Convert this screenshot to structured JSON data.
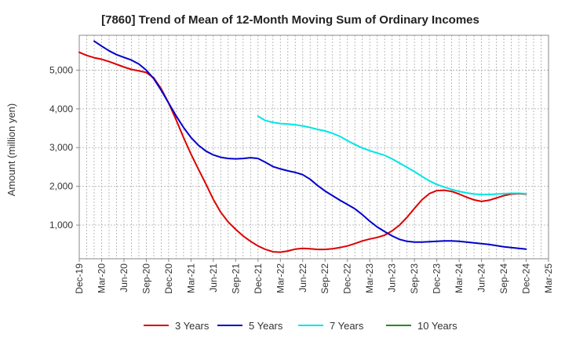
{
  "chart_data": {
    "type": "line",
    "title": "[7860]  Trend of Mean of 12-Month Moving Sum of Ordinary Incomes",
    "xlabel": "",
    "ylabel": "Amount (million yen)",
    "ylim": [
      130,
      5900
    ],
    "yticks": [
      1000,
      2000,
      3000,
      4000,
      5000
    ],
    "ytick_labels": [
      "1,000",
      "2,000",
      "3,000",
      "4,000",
      "5,000"
    ],
    "grid": true,
    "legend_position": "bottom",
    "x_tick_labels": [
      "Dec-19",
      "Mar-20",
      "Jun-20",
      "Sep-20",
      "Dec-20",
      "Mar-21",
      "Jun-21",
      "Sep-21",
      "Dec-21",
      "Mar-22",
      "Jun-22",
      "Sep-22",
      "Dec-22",
      "Mar-23",
      "Jun-23",
      "Sep-23",
      "Dec-23",
      "Mar-24",
      "Jun-24",
      "Sep-24",
      "Dec-24",
      "Mar-25"
    ],
    "x_count": 64,
    "series": [
      {
        "name": "3 Years",
        "color": "#dd0000",
        "x": [
          0,
          1,
          2,
          3,
          4,
          5,
          6,
          7,
          8,
          9,
          10,
          11,
          12,
          13,
          14,
          15,
          16,
          17,
          18,
          19,
          20,
          21,
          22,
          23,
          24,
          25,
          26,
          27,
          28,
          29,
          30,
          31,
          32,
          33,
          34,
          35,
          36,
          37,
          38,
          39,
          40,
          41,
          42,
          43,
          44,
          45,
          46,
          47,
          48,
          49,
          50,
          51,
          52,
          53,
          54,
          55,
          56,
          57,
          58,
          59,
          60
        ],
        "values": [
          5460,
          5380,
          5320,
          5280,
          5220,
          5150,
          5080,
          5020,
          4980,
          4940,
          4800,
          4520,
          4150,
          3720,
          3260,
          2830,
          2440,
          2060,
          1660,
          1330,
          1080,
          890,
          720,
          580,
          460,
          370,
          310,
          300,
          330,
          380,
          400,
          390,
          370,
          370,
          390,
          420,
          460,
          520,
          590,
          640,
          680,
          740,
          850,
          1000,
          1200,
          1430,
          1650,
          1810,
          1890,
          1900,
          1870,
          1800,
          1720,
          1650,
          1610,
          1640,
          1700,
          1760,
          1800,
          1810,
          1800
        ]
      },
      {
        "name": "5 Years",
        "color": "#0000cc",
        "x": [
          2,
          3,
          4,
          5,
          6,
          7,
          8,
          9,
          10,
          11,
          12,
          13,
          14,
          15,
          16,
          17,
          18,
          19,
          20,
          21,
          22,
          23,
          24,
          25,
          26,
          27,
          28,
          29,
          30,
          31,
          32,
          33,
          34,
          35,
          36,
          37,
          38,
          39,
          40,
          41,
          42,
          43,
          44,
          45,
          46,
          47,
          48,
          49,
          50,
          51,
          52,
          53,
          54,
          55,
          56,
          57,
          58,
          59,
          60
        ],
        "values": [
          5750,
          5620,
          5500,
          5400,
          5330,
          5260,
          5160,
          5000,
          4780,
          4480,
          4150,
          3820,
          3520,
          3260,
          3060,
          2910,
          2810,
          2750,
          2720,
          2710,
          2720,
          2740,
          2720,
          2620,
          2510,
          2450,
          2400,
          2360,
          2300,
          2180,
          2020,
          1880,
          1760,
          1640,
          1530,
          1420,
          1270,
          1100,
          950,
          830,
          720,
          630,
          580,
          560,
          560,
          570,
          580,
          590,
          590,
          580,
          560,
          540,
          520,
          500,
          470,
          440,
          420,
          400,
          380
        ]
      },
      {
        "name": "7 Years",
        "color": "#00e5e5",
        "x": [
          24,
          25,
          26,
          27,
          28,
          29,
          30,
          31,
          32,
          33,
          34,
          35,
          36,
          37,
          38,
          39,
          40,
          41,
          42,
          43,
          44,
          45,
          46,
          47,
          48,
          49,
          50,
          51,
          52,
          53,
          54,
          55,
          56,
          57,
          58,
          59,
          60
        ],
        "values": [
          3810,
          3700,
          3650,
          3620,
          3610,
          3590,
          3560,
          3520,
          3470,
          3430,
          3370,
          3290,
          3180,
          3080,
          2990,
          2920,
          2860,
          2800,
          2710,
          2600,
          2490,
          2380,
          2260,
          2140,
          2050,
          1980,
          1920,
          1870,
          1830,
          1800,
          1790,
          1790,
          1800,
          1810,
          1820,
          1820,
          1810
        ]
      },
      {
        "name": "10 Years",
        "color": "#228b22",
        "x": [],
        "values": []
      }
    ]
  }
}
